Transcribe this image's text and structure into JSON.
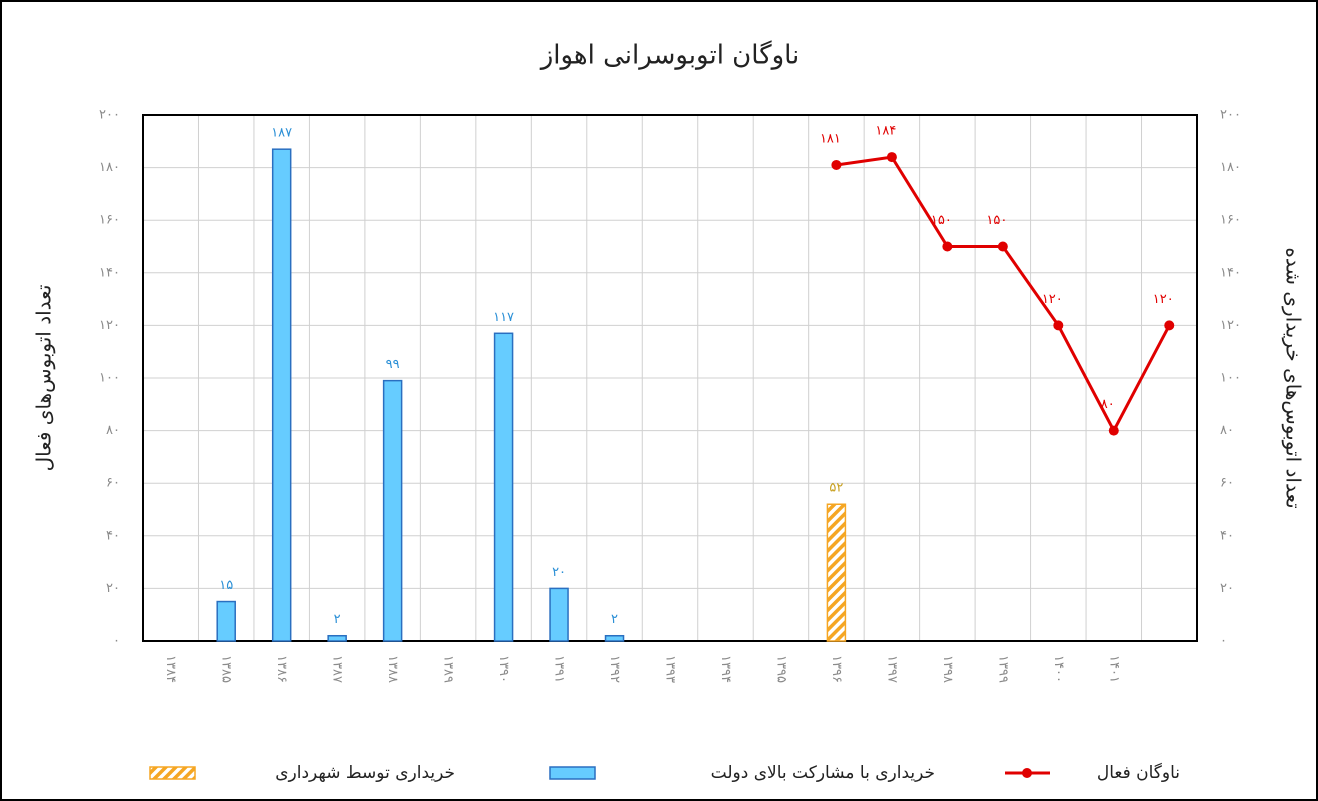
{
  "chart_data": {
    "type": "bar_line",
    "title": "ناوگان اتوبوسرانی اهواز",
    "y_label": "تعداد اتوبوس‌های فعال",
    "y2_label": "تعداد اتوبوس‌های خریداری شده",
    "categories": [
      "۱۳۸۴",
      "۱۳۸۵",
      "۱۳۸۶",
      "۱۳۸۷",
      "۱۳۸۸",
      "۱۳۸۹",
      "۱۳۹۰",
      "۱۳۹۱",
      "۱۳۹۲",
      "۱۳۹۳",
      "۱۳۹۴",
      "۱۳۹۵",
      "۱۳۹۶",
      "۱۳۹۷",
      "۱۳۹۸",
      "۱۳۹۹",
      "۱۴۰۰",
      "۱۴۰۱",
      null
    ],
    "ylim": [
      0,
      200
    ],
    "yticks": [
      {
        "value": 0,
        "label": "۰"
      },
      {
        "value": 20,
        "label": "۲۰"
      },
      {
        "value": 40,
        "label": "۴۰"
      },
      {
        "value": 60,
        "label": "۶۰"
      },
      {
        "value": 80,
        "label": "۸۰"
      },
      {
        "value": 100,
        "label": "۱۰۰"
      },
      {
        "value": 120,
        "label": "۱۲۰"
      },
      {
        "value": 140,
        "label": "۱۴۰"
      },
      {
        "value": 160,
        "label": "۱۶۰"
      },
      {
        "value": 180,
        "label": "۱۸۰"
      },
      {
        "value": 200,
        "label": "۲۰۰"
      }
    ],
    "y2lim": [
      0,
      200
    ],
    "y2ticks": [
      {
        "value": 0,
        "label": "۰"
      },
      {
        "value": 20,
        "label": "۲۰"
      },
      {
        "value": 40,
        "label": "۴۰"
      },
      {
        "value": 60,
        "label": "۶۰"
      },
      {
        "value": 80,
        "label": "۸۰"
      },
      {
        "value": 100,
        "label": "۱۰۰"
      },
      {
        "value": 120,
        "label": "۱۲۰"
      },
      {
        "value": 140,
        "label": "۱۴۰"
      },
      {
        "value": 160,
        "label": "۱۶۰"
      },
      {
        "value": 180,
        "label": "۱۸۰"
      },
      {
        "value": 200,
        "label": "۲۰۰"
      }
    ],
    "grid": true,
    "series": [
      {
        "name": "ناوگان فعال",
        "type": "line",
        "axis": "y",
        "color": "#e00000",
        "values": [
          null,
          null,
          null,
          null,
          null,
          null,
          null,
          null,
          null,
          null,
          null,
          null,
          181,
          184,
          150,
          150,
          120,
          80,
          120
        ],
        "value_labels": [
          null,
          null,
          null,
          null,
          null,
          null,
          null,
          null,
          null,
          null,
          null,
          null,
          "۱۸۱",
          "۱۸۴",
          "۱۵۰",
          "۱۵۰",
          "۱۲۰",
          "۸۰",
          "۱۲۰"
        ]
      },
      {
        "name": "خریداری با مشارکت بالای دولت",
        "type": "bar",
        "axis": "y2",
        "color": "#66ccff",
        "edge_color": "#2a6fc0",
        "label_color": "#2a8fd6",
        "values": [
          null,
          15,
          187,
          2,
          99,
          null,
          117,
          20,
          2,
          null,
          null,
          null,
          null,
          null,
          null,
          null,
          null,
          null,
          null
        ],
        "value_labels": [
          null,
          "۱۵",
          "۱۸۷",
          "۲",
          "۹۹",
          null,
          "۱۱۷",
          "۲۰",
          "۲",
          null,
          null,
          null,
          null,
          null,
          null,
          null,
          null,
          null,
          null
        ]
      },
      {
        "name": "خریداری توسط شهرداری",
        "type": "bar",
        "axis": "y2",
        "color": "#f5a623",
        "hatch": true,
        "label_color": "#c8a020",
        "values": [
          null,
          null,
          null,
          null,
          null,
          null,
          null,
          null,
          null,
          null,
          null,
          null,
          52,
          null,
          null,
          null,
          null,
          null,
          null
        ],
        "value_labels": [
          null,
          null,
          null,
          null,
          null,
          null,
          null,
          null,
          null,
          null,
          null,
          null,
          "۵۲",
          null,
          null,
          null,
          null,
          null,
          null
        ]
      }
    ]
  }
}
